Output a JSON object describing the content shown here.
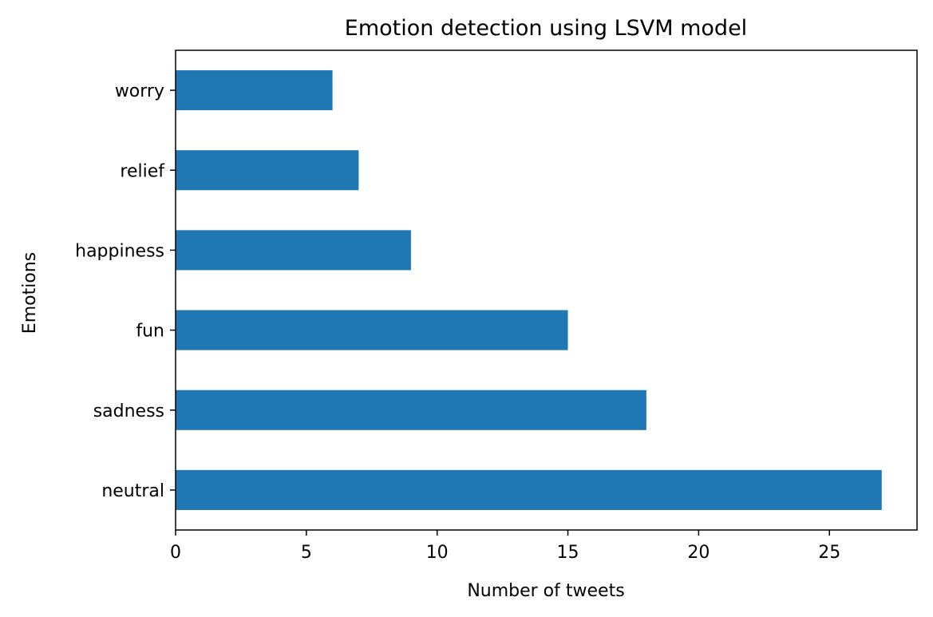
{
  "chart_data": {
    "type": "bar",
    "orientation": "horizontal",
    "title": "Emotion detection using LSVM model",
    "xlabel": "Number of tweets",
    "ylabel": "Emotions",
    "categories": [
      "neutral",
      "sadness",
      "fun",
      "happiness",
      "relief",
      "worry"
    ],
    "values": [
      27,
      18,
      15,
      9,
      7,
      6
    ],
    "xlim": [
      0,
      28.35
    ],
    "xticks": [
      0,
      5,
      10,
      15,
      20,
      25
    ],
    "grid": false,
    "legend": "none",
    "bar_color": "#1f77b4"
  }
}
